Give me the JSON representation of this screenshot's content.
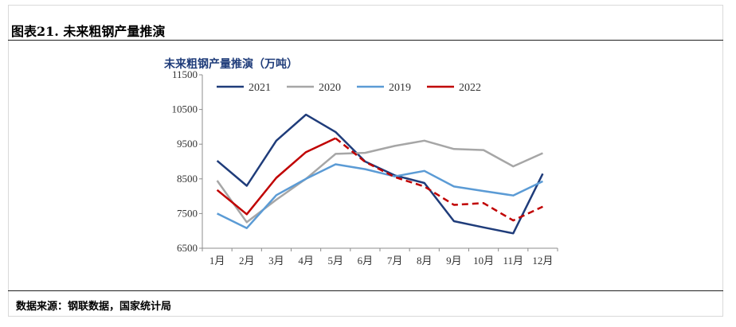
{
  "header": {
    "figure_title": "图表21. 未来粗钢产量推演"
  },
  "footer": {
    "source": "数据来源：钢联数据，国家统计局"
  },
  "chart_data": {
    "type": "line",
    "title": "未来粗钢产量推演（万吨）",
    "xlabel": "",
    "ylabel": "",
    "categories": [
      "1月",
      "2月",
      "3月",
      "4月",
      "5月",
      "6月",
      "7月",
      "8月",
      "9月",
      "10月",
      "11月",
      "12月"
    ],
    "ylim": [
      6500,
      11500
    ],
    "yticks": [
      6500,
      7500,
      8500,
      9500,
      10500,
      11500
    ],
    "grid": false,
    "legend_position": "top",
    "series": [
      {
        "name": "2021",
        "color": "#1f3c7a",
        "style": "solid",
        "values": [
          9020,
          8300,
          9600,
          10350,
          9850,
          9000,
          8600,
          8380,
          7280,
          7100,
          6930,
          8650
        ]
      },
      {
        "name": "2020",
        "color": "#a6a6a6",
        "style": "solid",
        "values": [
          8450,
          7250,
          7900,
          8500,
          9220,
          9250,
          9450,
          9600,
          9360,
          9330,
          8860,
          9240
        ]
      },
      {
        "name": "2019",
        "color": "#5b9bd5",
        "style": "solid",
        "values": [
          7500,
          7080,
          8030,
          8500,
          8920,
          8780,
          8570,
          8730,
          8280,
          8150,
          8020,
          8430
        ]
      },
      {
        "name": "2022",
        "color": "#c00000",
        "style": "solid-then-dashed",
        "dash_from_index": 4,
        "values": [
          8180,
          7480,
          8530,
          9270,
          9670,
          8990,
          8550,
          8280,
          7750,
          7800,
          7300,
          7700
        ]
      }
    ]
  }
}
